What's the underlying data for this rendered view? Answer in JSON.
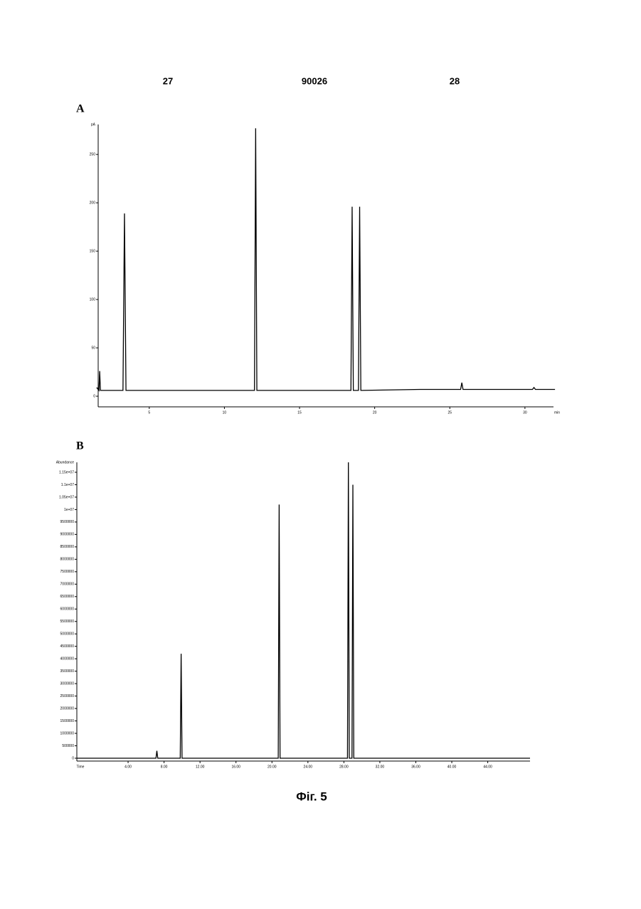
{
  "header": {
    "left": "27",
    "center": "90026",
    "right": "28"
  },
  "panels": [
    "A",
    "B"
  ],
  "caption": "Фіг. 5",
  "chart_data": [
    {
      "type": "line",
      "x_label": "min",
      "y_label": "pA",
      "color": "#000000",
      "x": [
        1.5,
        1.65,
        1.7,
        1.75,
        3.25,
        3.35,
        3.45,
        12.0,
        12.08,
        12.16,
        18.42,
        18.5,
        18.58,
        18.92,
        19.0,
        19.08,
        23.0,
        25.72,
        25.8,
        25.88,
        30.5,
        30.6,
        30.7,
        32
      ],
      "values": [
        9,
        6,
        26,
        6,
        6,
        189,
        6,
        6,
        277,
        6,
        6,
        196,
        6,
        6,
        196,
        6,
        7,
        7,
        14,
        7,
        7,
        9,
        7,
        7
      ],
      "xlim": [
        1.6,
        31.9
      ],
      "ylim": [
        -11,
        281
      ],
      "xticks": [
        5,
        10,
        15,
        20,
        25,
        30
      ],
      "yticks": [
        0,
        50,
        100,
        150,
        200,
        250
      ]
    },
    {
      "type": "line",
      "x_label": "Time",
      "y_label": "Abundance",
      "color": "#000000",
      "x": [
        -1.7,
        7.1,
        7.2,
        7.3,
        9.8,
        9.9,
        10.0,
        20.7,
        20.8,
        20.9,
        28.4,
        28.5,
        28.6,
        28.9,
        29.0,
        29.1,
        48.7
      ],
      "values": [
        0,
        0,
        300000,
        0,
        0,
        4200000,
        0,
        0,
        10200000,
        0,
        0,
        11900000,
        0,
        0,
        11000000,
        0,
        0
      ],
      "xlim": [
        -1.7,
        48.7
      ],
      "ylim": [
        -114000,
        11900000
      ],
      "xticks": [
        {
          "value": 4,
          "label": "4.00"
        },
        {
          "value": 8,
          "label": "8.00"
        },
        {
          "value": 12,
          "label": "12.00"
        },
        {
          "value": 16,
          "label": "16.00"
        },
        {
          "value": 20,
          "label": "20.00"
        },
        {
          "value": 24,
          "label": "24.00"
        },
        {
          "value": 28,
          "label": "28.00"
        },
        {
          "value": 32,
          "label": "32.00"
        },
        {
          "value": 36,
          "label": "36.00"
        },
        {
          "value": 40,
          "label": "40.00"
        },
        {
          "value": 44,
          "label": "44.00"
        }
      ],
      "yticks": [
        0,
        500000,
        1000000,
        1500000,
        2000000,
        2500000,
        3000000,
        3500000,
        4000000,
        4500000,
        5000000,
        5500000,
        6000000,
        6500000,
        7000000,
        7500000,
        8000000,
        8500000,
        9000000,
        9500000,
        {
          "value": 10000000,
          "label": "1e+07"
        },
        {
          "value": 10500000,
          "label": "1.05e+07"
        },
        {
          "value": 11000000,
          "label": "1.1e+07"
        },
        {
          "value": 11500000,
          "label": "1.15e+07"
        }
      ]
    }
  ]
}
